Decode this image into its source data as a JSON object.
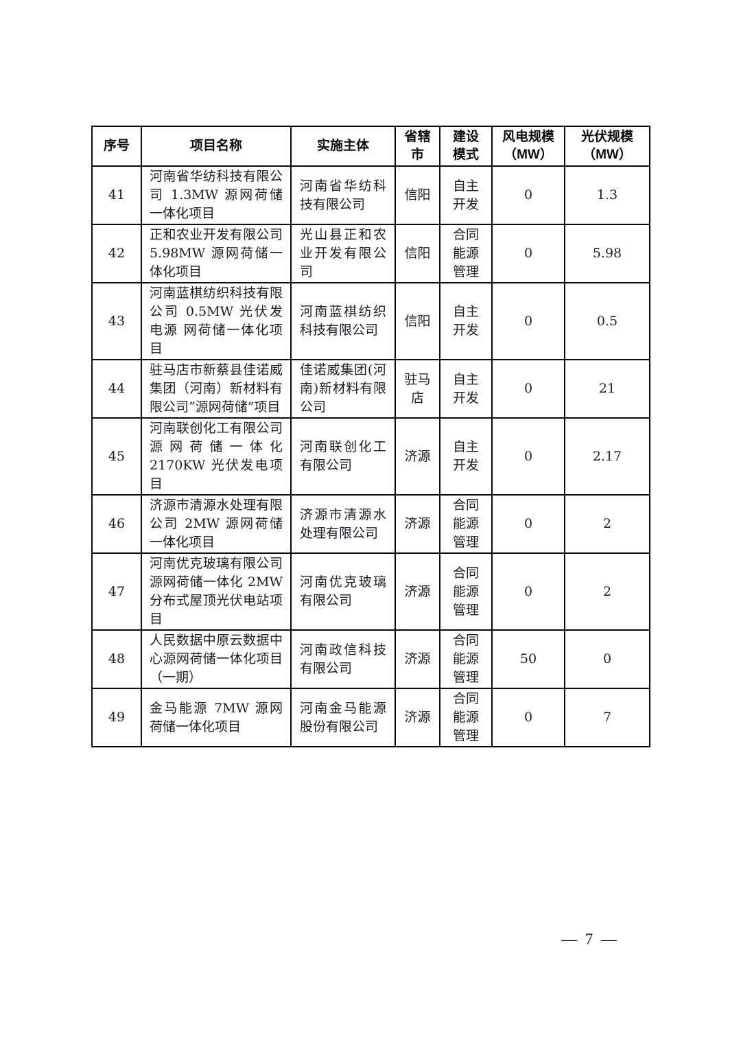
{
  "page": {
    "number_label": "— 7 —"
  },
  "colors": {
    "background": "#ffffff",
    "border": "#0a0a0a",
    "text": "#1c1c22"
  },
  "table": {
    "columns": [
      {
        "id": "index",
        "label": "序号"
      },
      {
        "id": "project_name",
        "label": "项目名称"
      },
      {
        "id": "entity",
        "label": "实施主体"
      },
      {
        "id": "city",
        "label": "省辖\n市"
      },
      {
        "id": "mode",
        "label": "建设\n模式"
      },
      {
        "id": "wind_mw",
        "label": "风电规模\n（MW）"
      },
      {
        "id": "pv_mw",
        "label": "光伏规模\n（MW）"
      }
    ],
    "rows": [
      {
        "index": "41",
        "project_name": "河南省华纺科技有限公司 1.3MW 源网荷储一体化项目",
        "entity": "河南省华纺科技有限公司",
        "city": "信阳",
        "mode": "自主\n开发",
        "wind_mw": "0",
        "pv_mw": "1.3"
      },
      {
        "index": "42",
        "project_name": "正和农业开发有限公司 5.98MW 源网荷储一体化项目",
        "entity": "光山县正和农业开发有限公司",
        "city": "信阳",
        "mode": "合同\n能源\n管理",
        "wind_mw": "0",
        "pv_mw": "5.98"
      },
      {
        "index": "43",
        "project_name": "河南蓝棋纺织科技有限公司 0.5MW 光伏发电源 网荷储一体化项目",
        "entity": "河南蓝棋纺织科技有限公司",
        "city": "信阳",
        "mode": "自主\n开发",
        "wind_mw": "0",
        "pv_mw": "0.5"
      },
      {
        "index": "44",
        "project_name": "驻马店市新蔡县佳诺威集团（河南）新材料有限公司“源网荷储”项目",
        "entity": "佳诺威集团(河南)新材料有限公司",
        "city": "驻马\n店",
        "mode": "自主\n开发",
        "wind_mw": "0",
        "pv_mw": "21"
      },
      {
        "index": "45",
        "project_name": "河南联创化工有限公司源网荷储一体化 2170KW 光伏发电项目",
        "entity": "河南联创化工有限公司",
        "city": "济源",
        "mode": "自主\n开发",
        "wind_mw": "0",
        "pv_mw": "2.17"
      },
      {
        "index": "46",
        "project_name": "济源市清源水处理有限公司 2MW 源网荷储一体化项目",
        "entity": "济源市清源水处理有限公司",
        "city": "济源",
        "mode": "合同\n能源\n管理",
        "wind_mw": "0",
        "pv_mw": "2"
      },
      {
        "index": "47",
        "project_name": "河南优克玻璃有限公司源网荷储一体化 2MW 分布式屋顶光伏电站项目",
        "entity": "河南优克玻璃有限公司",
        "city": "济源",
        "mode": "合同\n能源\n管理",
        "wind_mw": "0",
        "pv_mw": "2"
      },
      {
        "index": "48",
        "project_name": "人民数据中原云数据中心源网荷储一体化项目（一期）",
        "entity": "河南政信科技有限公司",
        "city": "济源",
        "mode": "合同\n能源\n管理",
        "wind_mw": "50",
        "pv_mw": "0"
      },
      {
        "index": "49",
        "project_name": "金马能源 7MW 源网荷储一体化项目",
        "entity": "河南金马能源股份有限公司",
        "city": "济源",
        "mode": "合同\n能源\n管理",
        "wind_mw": "0",
        "pv_mw": "7"
      }
    ]
  }
}
